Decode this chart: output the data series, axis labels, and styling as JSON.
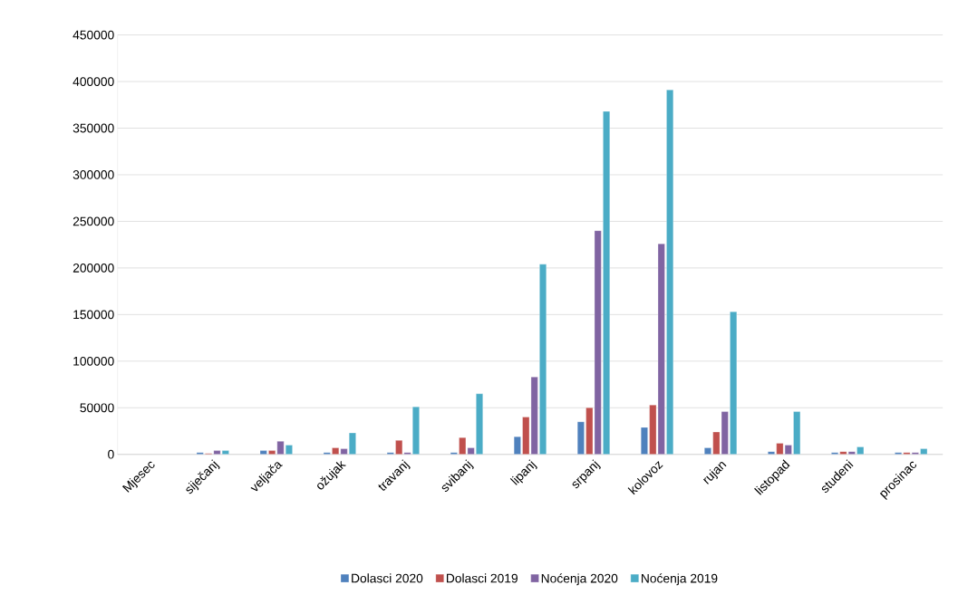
{
  "chart_data": {
    "type": "bar",
    "categories": [
      "Mjesec",
      "siječanj",
      "veljača",
      "ožujak",
      "travanj",
      "svibanj",
      "lipanj",
      "srpanj",
      "kolovoz",
      "rujan",
      "listopad",
      "studeni",
      "prosinac"
    ],
    "series": [
      {
        "name": "Dolasci 2020",
        "color": "#4f81bd",
        "values": [
          null,
          2000,
          4000,
          2000,
          2000,
          2000,
          19000,
          35000,
          29000,
          7000,
          3000,
          2000,
          2000
        ]
      },
      {
        "name": "Dolasci 2019",
        "color": "#c0504d",
        "values": [
          null,
          1000,
          4000,
          7000,
          15000,
          18000,
          40000,
          50000,
          53000,
          24000,
          12000,
          3000,
          2000
        ]
      },
      {
        "name": "Noćenja 2020",
        "color": "#8064a2",
        "values": [
          null,
          4000,
          14000,
          6000,
          2000,
          7000,
          83000,
          240000,
          226000,
          46000,
          10000,
          3000,
          2000
        ]
      },
      {
        "name": "Noćenja 2019",
        "color": "#4bacc6",
        "values": [
          null,
          4000,
          10000,
          23000,
          51000,
          65000,
          204000,
          368000,
          391000,
          153000,
          46000,
          8000,
          6000
        ]
      }
    ],
    "ylim": [
      0,
      450000
    ],
    "yticks": [
      0,
      50000,
      100000,
      150000,
      200000,
      250000,
      300000,
      350000,
      400000,
      450000
    ],
    "grid": "y",
    "legend": "bottom"
  }
}
